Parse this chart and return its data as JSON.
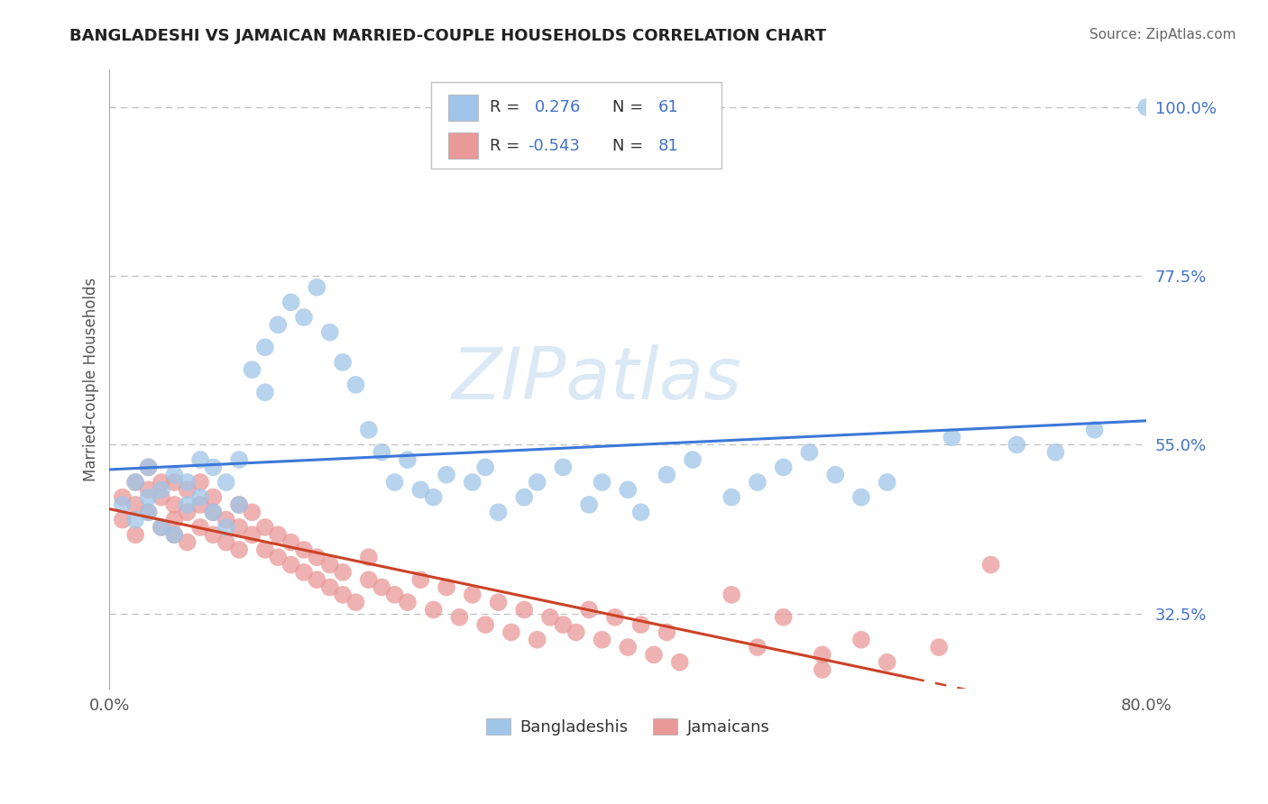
{
  "title": "BANGLADESHI VS JAMAICAN MARRIED-COUPLE HOUSEHOLDS CORRELATION CHART",
  "source": "Source: ZipAtlas.com",
  "ylabel": "Married-couple Households",
  "xlim": [
    0.0,
    0.8
  ],
  "ylim": [
    0.225,
    1.05
  ],
  "y_tick_vals": [
    0.325,
    0.55,
    0.775,
    1.0
  ],
  "y_tick_labels": [
    "32.5%",
    "55.0%",
    "77.5%",
    "100.0%"
  ],
  "x_tick_vals": [
    0.0,
    0.8
  ],
  "x_tick_labels": [
    "0.0%",
    "80.0%"
  ],
  "watermark": "ZIPatlas",
  "blue_color": "#9fc5e8",
  "pink_color": "#ea9999",
  "blue_line_color": "#3c78d8",
  "pink_line_color": "#cc4125",
  "tick_label_color": "#4472c4"
}
